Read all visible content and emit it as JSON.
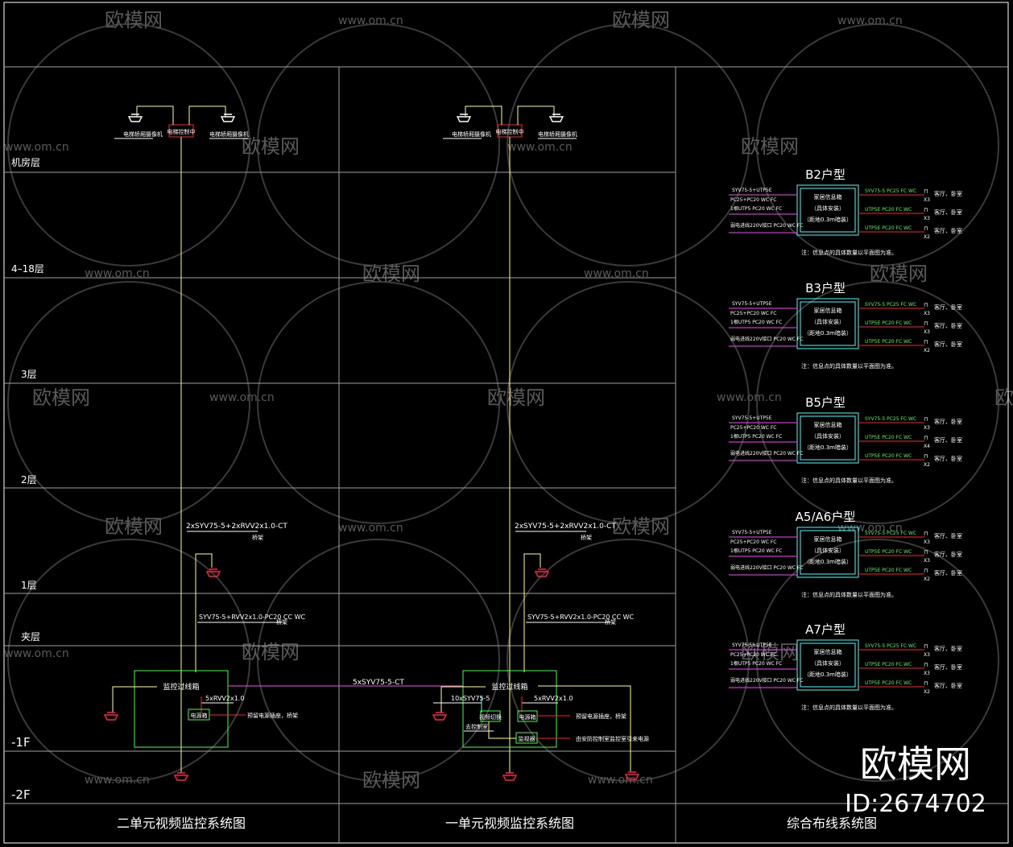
{
  "colors": {
    "frame": "#ffffff",
    "grid": "#a0a0a0",
    "riser": "#ffff80",
    "trunk": "#ff40ff",
    "box": "#40ff40",
    "camera": "#ff2040",
    "cyan": "#40ffff",
    "red": "#ff2020",
    "green": "#40ff40"
  },
  "floors": [
    "机房层",
    "4–18层",
    "3层",
    "2层",
    "1层",
    "夹层",
    "-1F",
    "-2F"
  ],
  "watermarks": {
    "brand": "欧模网",
    "url": "www.om.cn"
  },
  "logo": {
    "brand": "欧模网",
    "id": "ID:2674702"
  },
  "left": {
    "title": "二单元视频监控系统图",
    "top_box": "电梯控制中",
    "top_cam_left": "电梯轿厢摄像机",
    "top_cam_right": "电梯轿厢摄像机",
    "riser_label": "2xSYV75-5+2xRVV2x1.0-CT",
    "riser_sub": "桥架",
    "branch_label": "SYV75-5+RVV2x1.0-PC20 CC WC",
    "branch_sub": "桥架",
    "junction": "监控过线箱",
    "power_label": "5xRVV2x1.0",
    "power_box": "电源箱",
    "power_note": "预留电源插座，桥架"
  },
  "middle": {
    "title": "一单元视频监控系统图",
    "top_box": "电梯控制中",
    "top_cam_left": "电梯轿厢摄像机",
    "top_cam_right": "电梯轿厢摄像机",
    "riser_label": "2xSYV75-5+2xRVV2x1.0-CT",
    "riser_sub": "桥架",
    "branch_label": "SYV75-5+RVV2x1.0-PC20 CC WC",
    "branch_sub": "桥架",
    "junction": "监控过线箱",
    "trunk_label": "5xSYV75-5-CT",
    "video_label": "10xSYV75-5",
    "power_label": "5xRVV2x1.0",
    "mux_box": "视频切换",
    "power_box": "电源箱",
    "monitor_box": "监视器",
    "cable_label": "去控制室",
    "power_note": "预留电源插座，桥架",
    "monitor_note": "由安防控制室监控室引来电源"
  },
  "right": {
    "title": "综合布线系统图",
    "types": [
      {
        "name": "B2户型",
        "counts": [
          "X3",
          "X3",
          "X2"
        ]
      },
      {
        "name": "B3户型",
        "counts": [
          "X3",
          "X3",
          "X2"
        ]
      },
      {
        "name": "B5户型",
        "counts": [
          "X3",
          "X4",
          "X2"
        ]
      },
      {
        "name": "A5/A6户型",
        "counts": [
          "X3",
          "X3",
          "X2"
        ]
      },
      {
        "name": "A7户型",
        "counts": [
          "X3",
          "X3",
          "X2"
        ]
      }
    ],
    "inputs": [
      "SYV75-5+UTP5E",
      "PC25+PC20  WC FC",
      "1根UTP5  PC20  WC FC",
      "弱电进线220V接口  PC20  WC FC"
    ],
    "outputs": [
      "SYV75-5 PC25 FC WC",
      "UTP5E PC20 FC WC",
      "UTP5E PC20 FC WC"
    ],
    "rooms": [
      "客厅、卧室",
      "客厅、卧室",
      "客厅、卧室"
    ],
    "box_lines": [
      "家居信息箱",
      "（具体安装）",
      "（距地0.3m暗装）"
    ],
    "note": "注：信息点的具体数量以平面图为准。"
  }
}
